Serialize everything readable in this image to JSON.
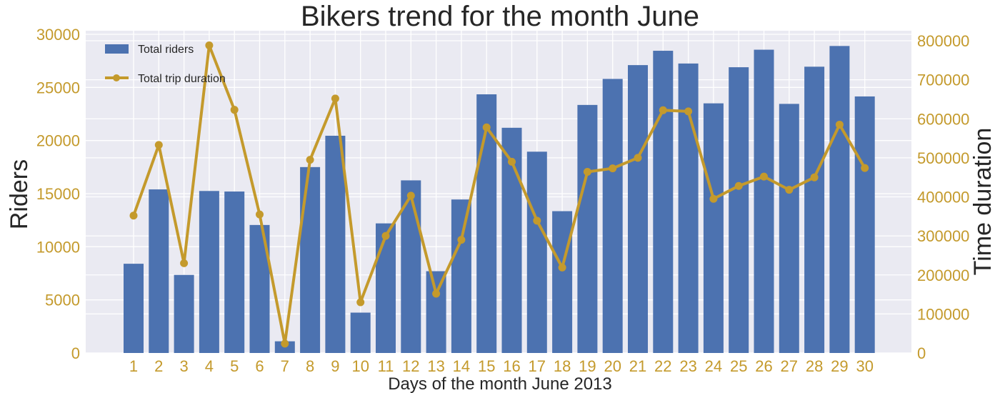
{
  "chart_data": {
    "type": "bar",
    "title": "Bikers trend for the month June",
    "xlabel": "Days of the month June 2013",
    "ylabel": "Riders",
    "ylabel_right": "Time duration",
    "categories": [
      "1",
      "2",
      "3",
      "4",
      "5",
      "6",
      "7",
      "8",
      "9",
      "10",
      "11",
      "12",
      "13",
      "14",
      "15",
      "16",
      "17",
      "18",
      "19",
      "20",
      "21",
      "22",
      "23",
      "24",
      "25",
      "26",
      "27",
      "28",
      "29",
      "30"
    ],
    "series": [
      {
        "name": "Total riders",
        "type": "bar",
        "axis": "left",
        "values": [
          8400,
          15400,
          7350,
          15250,
          15200,
          12050,
          1100,
          17500,
          20450,
          3800,
          12200,
          16250,
          7700,
          14450,
          24350,
          21200,
          18950,
          13350,
          23350,
          25800,
          27100,
          28450,
          27250,
          23500,
          26900,
          28550,
          23450,
          26950,
          28900,
          24150
        ]
      },
      {
        "name": "Total trip duration",
        "type": "line",
        "axis": "right",
        "values": [
          352000,
          533000,
          230000,
          788000,
          623000,
          355000,
          24000,
          495000,
          652000,
          130000,
          300000,
          403000,
          152000,
          290000,
          578000,
          490000,
          339000,
          219000,
          464000,
          473000,
          500000,
          622000,
          619000,
          395000,
          428000,
          452000,
          418000,
          450000,
          585000,
          474000
        ]
      }
    ],
    "ylim": [
      0,
      30000
    ],
    "yticks": [
      "0",
      "5000",
      "10000",
      "15000",
      "20000",
      "25000",
      "30000"
    ],
    "ylim_right": [
      0,
      800000
    ],
    "yticks_right": [
      "0",
      "100000",
      "200000",
      "300000",
      "400000",
      "500000",
      "600000",
      "700000",
      "800000"
    ],
    "legend_position": "top-left",
    "grid": true,
    "colors": {
      "bars": "#4c72b0",
      "line": "#c49a2c",
      "tick_labels": "#c49a2c",
      "plot_background": "#eaeaf2",
      "text": "#262626"
    }
  }
}
